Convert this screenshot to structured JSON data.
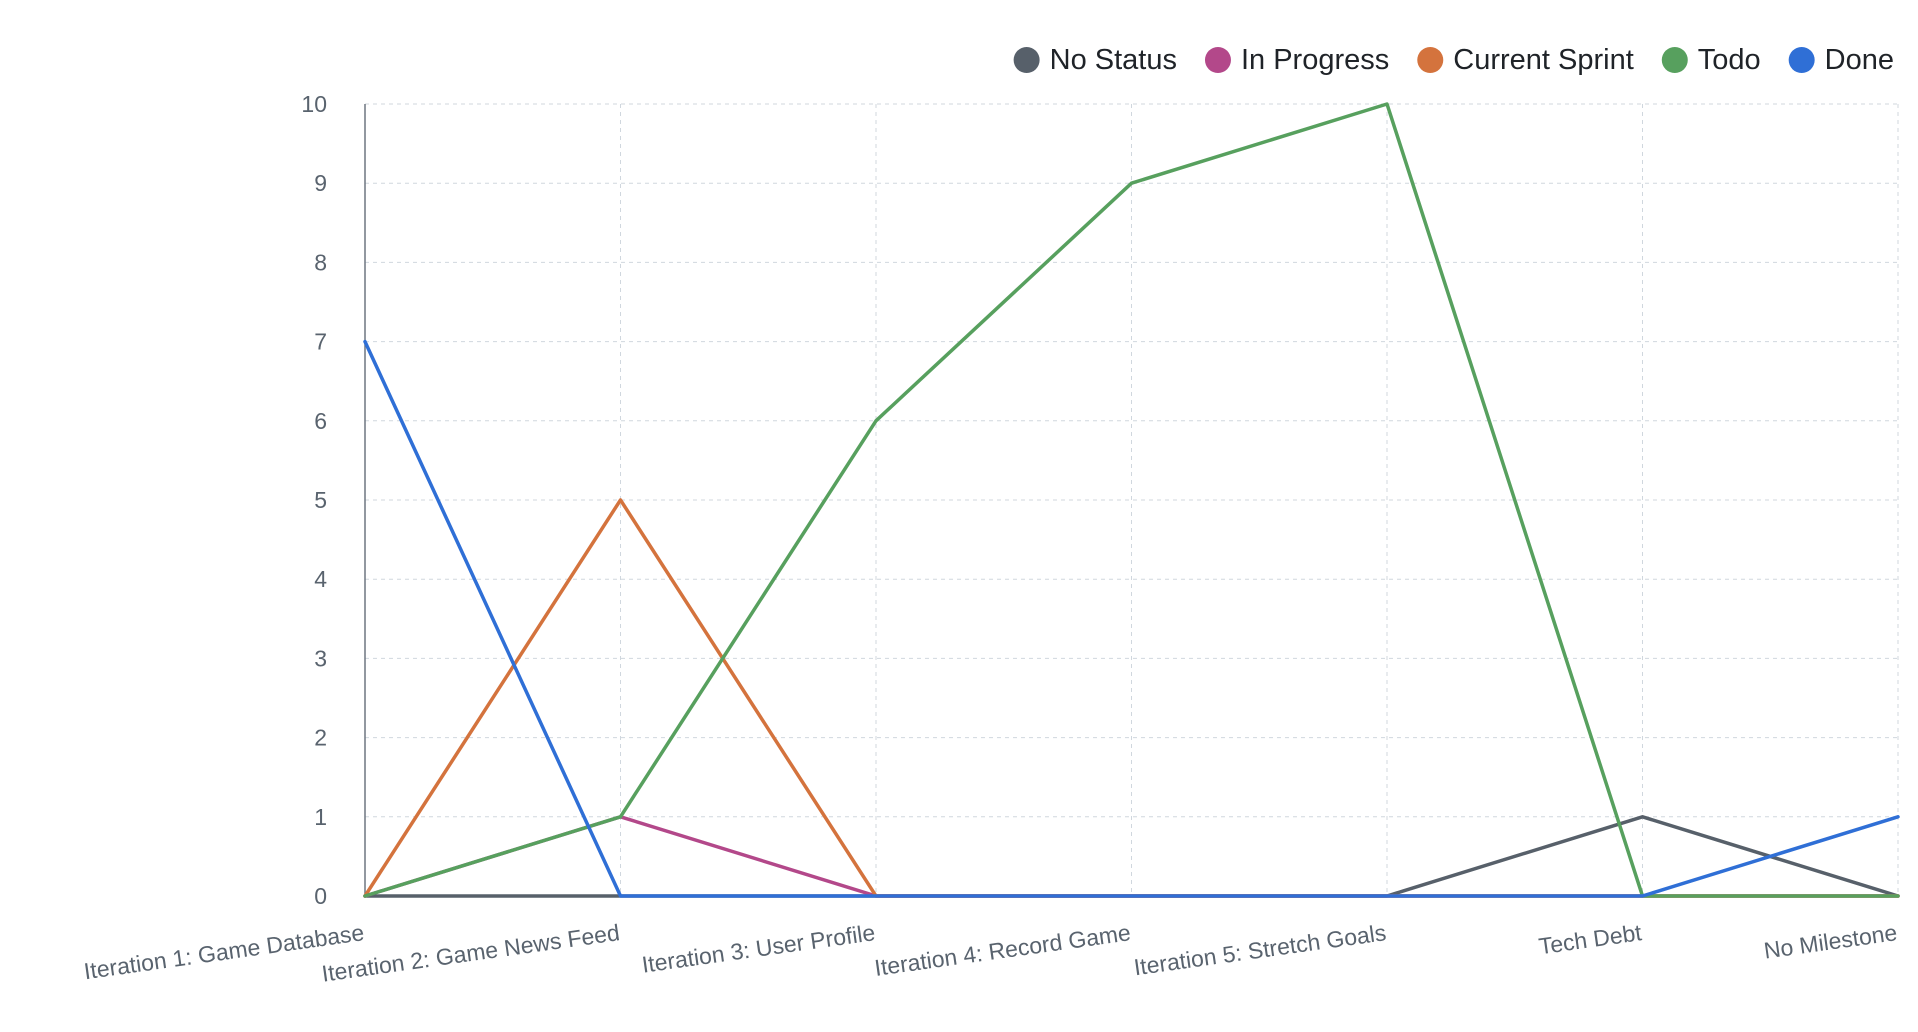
{
  "chart_data": {
    "type": "line",
    "categories": [
      "Iteration 1: Game Database",
      "Iteration 2: Game News Feed",
      "Iteration 3: User Profile",
      "Iteration 4: Record Game",
      "Iteration 5: Stretch Goals",
      "Tech Debt",
      "No Milestone"
    ],
    "series": [
      {
        "name": "No Status",
        "color": "#57606a",
        "values": [
          0,
          0,
          0,
          0,
          0,
          1,
          0
        ]
      },
      {
        "name": "In Progress",
        "color": "#b3488a",
        "values": [
          0,
          1,
          0,
          0,
          0,
          0,
          0
        ]
      },
      {
        "name": "Current Sprint",
        "color": "#d4733d",
        "values": [
          0,
          5,
          0,
          0,
          0,
          0,
          0
        ]
      },
      {
        "name": "Todo",
        "color": "#57a05e",
        "values": [
          0,
          1,
          6,
          9,
          10,
          0,
          0
        ]
      },
      {
        "name": "Done",
        "color": "#2f6fd6",
        "values": [
          7,
          0,
          0,
          0,
          0,
          0,
          1
        ]
      }
    ],
    "y_ticks": [
      0,
      1,
      2,
      3,
      4,
      5,
      6,
      7,
      8,
      9,
      10
    ],
    "ylim": [
      0,
      10
    ],
    "grid": true,
    "legend_position": "top-right"
  }
}
